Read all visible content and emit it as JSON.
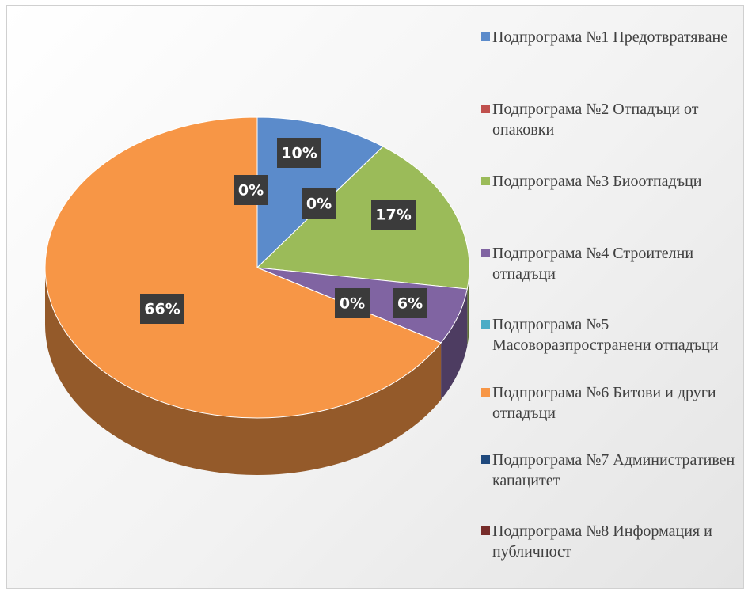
{
  "chart_data": {
    "type": "pie",
    "categories": [
      "Подпрограма №1 Предотвратяване",
      "Подпрограма №2 Отпадъци от опаковки",
      "Подпрограма №3 Биоотпадъци",
      "Подпрограма №4 Строителни отпадъци",
      "Подпрограма №5 Масоворазпространени отпадъци",
      "Подпрограма №6 Битови и други отпадъци",
      "Подпрограма №7 Административен капацитет",
      "Подпрограма №8 Информация и публичност"
    ],
    "values": [
      10,
      0,
      17,
      6,
      0,
      66,
      0,
      0
    ],
    "value_labels": [
      "10%",
      "0%",
      "17%",
      "6%",
      "0%",
      "66%",
      "0%",
      null
    ],
    "colors": [
      "#5b8bcb",
      "#c0504d",
      "#9bbb59",
      "#8064a2",
      "#4bacc6",
      "#f79646",
      "#1f497d",
      "#772c2a"
    ],
    "legend": "right"
  }
}
